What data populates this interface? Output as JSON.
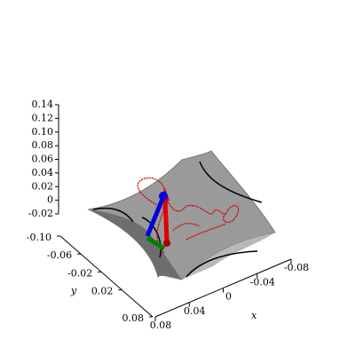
{
  "chart_data": {
    "type": "surface3d",
    "xlabel": "x",
    "ylabel": "y",
    "xlim": [
      0.08,
      -0.08
    ],
    "xticks": [
      0.08,
      0.04,
      0,
      -0.04,
      {
        "value": -0.08,
        "label": "-0.08"
      }
    ],
    "ylim": [
      -0.1,
      0.08
    ],
    "yticks": [
      {
        "value": -0.1,
        "label": "-0.10"
      },
      -0.06,
      -0.02,
      0.02,
      0.08
    ],
    "zlim": [
      -0.02,
      0.14
    ],
    "zticks": [
      0.14,
      0.12,
      {
        "value": 0.1,
        "label": "0.10"
      },
      0.08,
      0.06,
      0.04,
      0.02,
      0,
      -0.02
    ],
    "surface_color": "#9a9a9a"
  }
}
